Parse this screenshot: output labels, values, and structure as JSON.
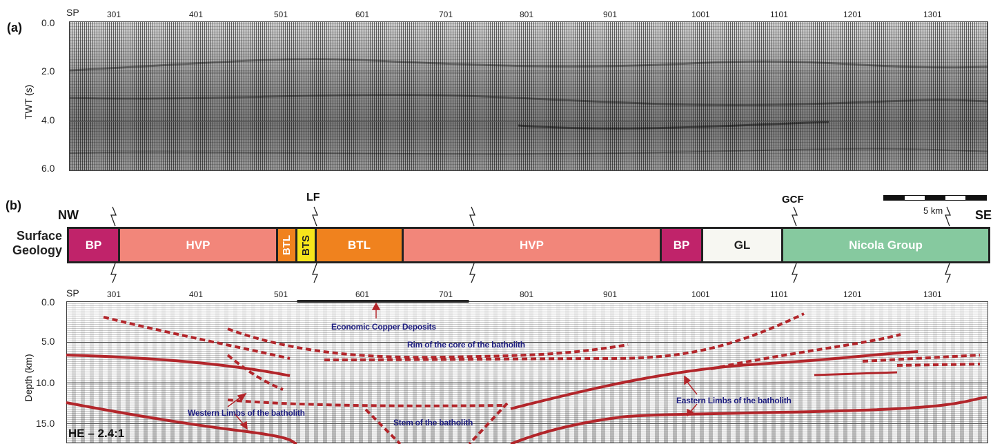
{
  "panel_a": {
    "label": "(a)",
    "sp_prefix": "SP",
    "sp_ticks": [
      "301",
      "401",
      "501",
      "601",
      "701",
      "801",
      "901",
      "1001",
      "1101",
      "1201",
      "1301"
    ],
    "y_axis_title": "TWT (s)",
    "y_ticks": [
      "0.0",
      "2.0",
      "4.0",
      "6.0"
    ]
  },
  "panel_b": {
    "label": "(b)",
    "nw": "NW",
    "se": "SE",
    "lf": "LF",
    "gcf": "GCF",
    "scale_label": "5 km",
    "surface_geology": [
      "Surface",
      "Geology"
    ],
    "units": [
      {
        "label": "BP",
        "color": "#c0236a"
      },
      {
        "label": "HVP",
        "color": "#f2867a"
      },
      {
        "label": "BTL",
        "color": "#f0821e"
      },
      {
        "label": "BTS",
        "color": "#f7e51b"
      },
      {
        "label": "BTL",
        "color": "#f0821e"
      },
      {
        "label": "HVP",
        "color": "#f2867a"
      },
      {
        "label": "BP",
        "color": "#c0236a"
      },
      {
        "label": "GL",
        "color": "#f7f7f2"
      },
      {
        "label": "Nicola Group",
        "color": "#86c99f"
      }
    ],
    "sp_prefix": "SP",
    "sp_ticks": [
      "301",
      "401",
      "501",
      "601",
      "701",
      "801",
      "901",
      "1001",
      "1101",
      "1201",
      "1301"
    ],
    "y_axis_title": "Depth (km)",
    "y_ticks": [
      "0.0",
      "5.0",
      "10.0",
      "15.0"
    ],
    "annotations": {
      "copper": "Economic Copper Deposits",
      "rim": "Rim of the core of the batholith",
      "western": "Western Limbs of the batholith",
      "stem": "Stem of the batholith",
      "eastern": "Eastern Limbs of the batholith"
    },
    "he_ratio": "HE – 2.4:1"
  },
  "colors": {
    "interpretation": "#b3262b",
    "annotation_text": "#1d1d80"
  }
}
